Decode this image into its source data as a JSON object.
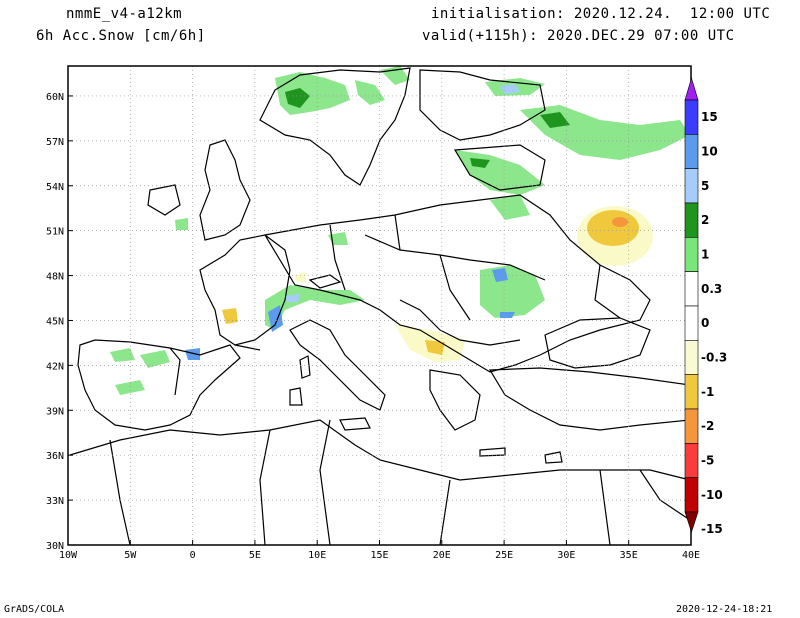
{
  "header": {
    "model": "nmmE_v4-a12km",
    "field": "6h Acc.Snow [cm/6h]",
    "init": "initialisation: 2020.12.24.  12:00 UTC",
    "valid": "valid(+115h): 2020.DEC.29 07:00 UTC"
  },
  "footer": {
    "left": "GrADS/COLA",
    "right": "2020-12-24-18:21"
  },
  "map": {
    "lon_labels": [
      "10W",
      "5W",
      "0",
      "5E",
      "10E",
      "15E",
      "20E",
      "25E",
      "30E",
      "35E",
      "40E"
    ],
    "lat_labels": [
      "60N",
      "57N",
      "54N",
      "51N",
      "48N",
      "45N",
      "42N",
      "39N",
      "36N",
      "33N",
      "30N"
    ],
    "lon_range": [
      -10,
      40
    ],
    "lat_range": [
      30,
      62
    ]
  },
  "colorbar": {
    "labels": [
      "15",
      "10",
      "5",
      "2",
      "1",
      "0.3",
      "0",
      "-0.3",
      "-1",
      "-2",
      "-5",
      "-10",
      "-15"
    ],
    "colors": [
      "#a020f0",
      "#3c3cff",
      "#5a9bef",
      "#a5ccfa",
      "#1e961e",
      "#78e678",
      "#ffffff",
      "#ffffff",
      "#fafad2",
      "#f0c83c",
      "#f5963c",
      "#fa3c3c",
      "#c00000",
      "#800000"
    ]
  },
  "palette": {
    "light_green": "#8ce68c",
    "green": "#1e961e",
    "light_yellow": "#fafac8",
    "orange_yellow": "#f0c83c",
    "orange": "#f5963c",
    "light_blue": "#a5ccfa",
    "blue": "#5a9bef"
  }
}
